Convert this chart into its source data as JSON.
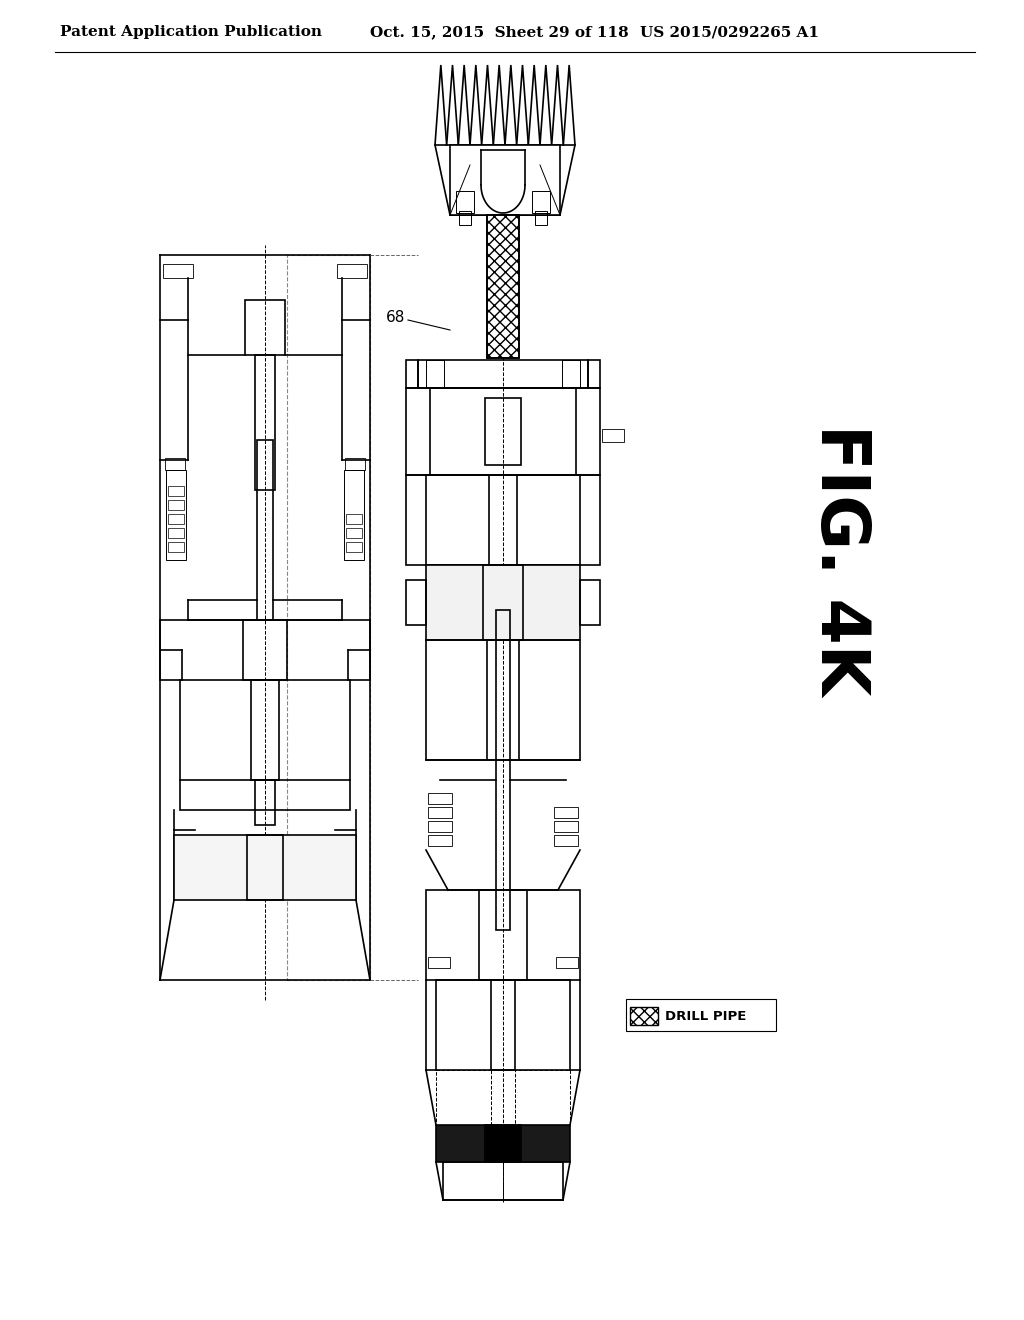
{
  "title_left": "Patent Application Publication",
  "title_mid": "Oct. 15, 2015  Sheet 29 of 118",
  "title_right": "US 2015/0292265 A1",
  "fig_label": "FIG. 4K",
  "callout_68": "68",
  "legend_label": "DRILL PIPE",
  "background": "#ffffff",
  "line_color": "#000000",
  "fig_label_fontsize": 48,
  "header_fontsize": 11
}
